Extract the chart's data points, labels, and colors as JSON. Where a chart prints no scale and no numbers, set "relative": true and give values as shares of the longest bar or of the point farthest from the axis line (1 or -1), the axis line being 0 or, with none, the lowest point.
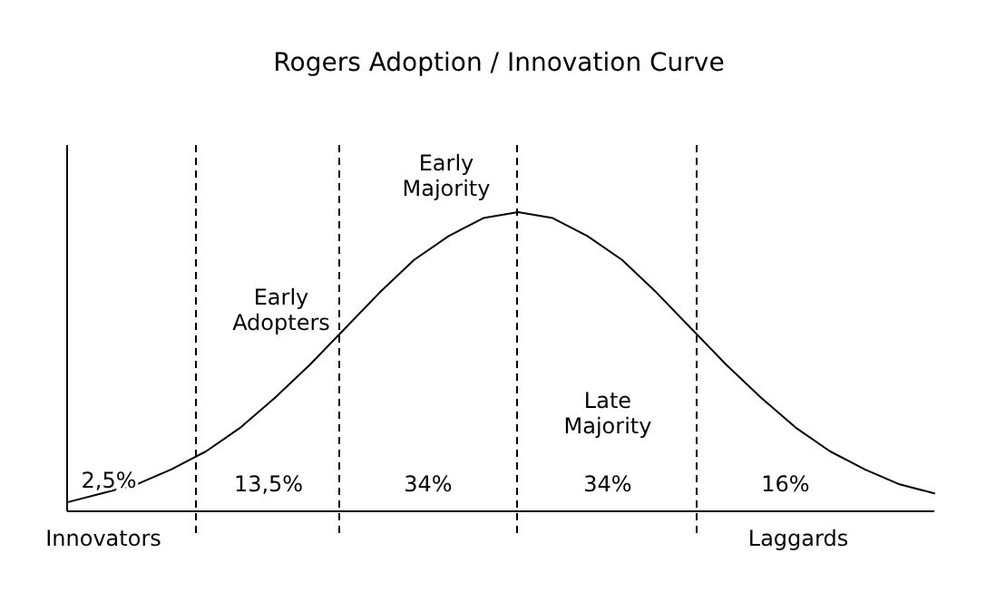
{
  "chart_data": {
    "type": "line",
    "title": "Rogers Adoption / Innovation Curve",
    "relative": true,
    "categories": [
      null,
      null,
      null,
      null,
      null,
      null,
      null,
      null,
      null,
      null,
      null,
      null,
      null,
      null,
      null,
      null,
      null,
      null,
      null,
      null,
      null,
      null,
      null,
      null,
      null,
      null
    ],
    "values": [
      0.03,
      0.06,
      0.09,
      0.14,
      0.2,
      0.28,
      0.38,
      0.49,
      0.61,
      0.73,
      0.84,
      0.92,
      0.98,
      1,
      0.98,
      0.92,
      0.84,
      0.73,
      0.61,
      0.49,
      0.38,
      0.28,
      0.2,
      0.14,
      0.09,
      0.06
    ],
    "color": "#000000",
    "annotations": [
      "Innovators",
      "Early\nAdopters",
      "Early\nMajority",
      "Late\nMajority",
      "Laggards",
      "2,5%",
      "13,5%",
      "34%",
      "34%",
      "16%"
    ]
  }
}
